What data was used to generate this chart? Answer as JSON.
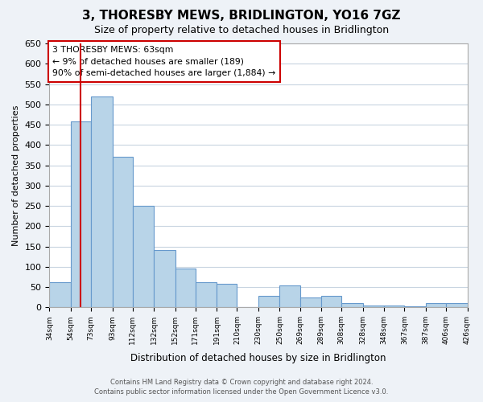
{
  "title": "3, THORESBY MEWS, BRIDLINGTON, YO16 7GZ",
  "subtitle": "Size of property relative to detached houses in Bridlington",
  "xlabel": "Distribution of detached houses by size in Bridlington",
  "ylabel": "Number of detached properties",
  "bar_edges": [
    34,
    54,
    73,
    93,
    112,
    132,
    152,
    171,
    191,
    210,
    230,
    250,
    269,
    289,
    308,
    328,
    348,
    367,
    387,
    406,
    426
  ],
  "bar_heights": [
    62,
    457,
    519,
    370,
    250,
    141,
    95,
    62,
    58,
    0,
    28,
    55,
    25,
    28,
    10,
    5,
    5,
    2,
    10,
    10
  ],
  "bar_color": "#b8d4e8",
  "bar_edge_color": "#6699cc",
  "property_line_x": 63,
  "property_line_color": "#cc0000",
  "ylim": [
    0,
    650
  ],
  "yticks": [
    0,
    50,
    100,
    150,
    200,
    250,
    300,
    350,
    400,
    450,
    500,
    550,
    600,
    650
  ],
  "xtick_labels": [
    "34sqm",
    "54sqm",
    "73sqm",
    "93sqm",
    "112sqm",
    "132sqm",
    "152sqm",
    "171sqm",
    "191sqm",
    "210sqm",
    "230sqm",
    "250sqm",
    "269sqm",
    "289sqm",
    "308sqm",
    "328sqm",
    "348sqm",
    "367sqm",
    "387sqm",
    "406sqm",
    "426sqm"
  ],
  "annotation_box_text": "3 THORESBY MEWS: 63sqm\n← 9% of detached houses are smaller (189)\n90% of semi-detached houses are larger (1,884) →",
  "footer_line1": "Contains HM Land Registry data © Crown copyright and database right 2024.",
  "footer_line2": "Contains public sector information licensed under the Open Government Licence v3.0.",
  "bg_color": "#eef2f7",
  "plot_bg_color": "#ffffff",
  "grid_color": "#c8d4e0"
}
